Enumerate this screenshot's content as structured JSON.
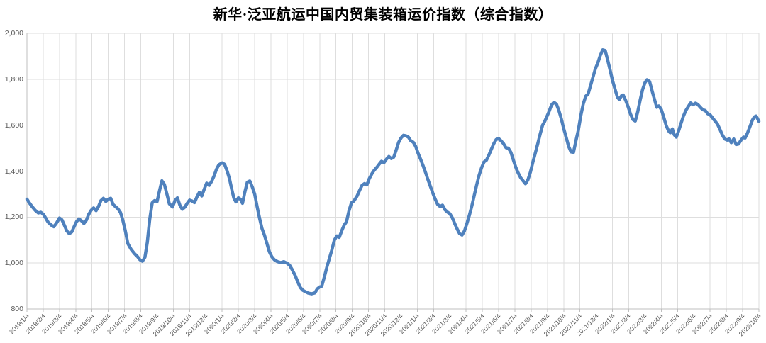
{
  "title": "新华·泛亚航运中国内贸集装箱运价指数（综合指数）",
  "chart_data": {
    "type": "line",
    "title": "新华·泛亚航运中国内贸集装箱运价指数（综合指数）",
    "xlabel": "",
    "ylabel": "",
    "ylim": [
      800,
      2000
    ],
    "y_ticks": [
      800,
      1000,
      1200,
      1400,
      1600,
      1800,
      2000
    ],
    "grid": true,
    "legend_position": "none",
    "x_unit": "months_since_2019/1/4",
    "x_labels": [
      "2019/1/4",
      "2019/2/4",
      "2019/3/4",
      "2019/4/4",
      "2019/5/4",
      "2019/6/4",
      "2019/7/4",
      "2019/8/4",
      "2019/9/4",
      "2019/10/4",
      "2019/11/4",
      "2019/12/4",
      "2020/1/4",
      "2020/2/4",
      "2020/3/4",
      "2020/4/4",
      "2020/5/4",
      "2020/6/4",
      "2020/7/4",
      "2020/8/4",
      "2020/9/4",
      "2020/10/4",
      "2020/11/4",
      "2020/12/4",
      "2021/1/4",
      "2021/2/4",
      "2021/3/4",
      "2021/4/4",
      "2021/5/4",
      "2021/6/4",
      "2021/7/4",
      "2021/8/4",
      "2021/9/4",
      "2021/10/4",
      "2021/11/4",
      "2021/12/4",
      "2022/1/4",
      "2022/2/4",
      "2022/3/4",
      "2022/4/4",
      "2022/5/4",
      "2022/6/4",
      "2022/7/4",
      "2022/8/4",
      "2022/9/4",
      "2022/10/4"
    ],
    "series": [
      {
        "name": "综合指数",
        "color": "#4F81BD",
        "points": [
          [
            0.0,
            1278
          ],
          [
            0.15,
            1262
          ],
          [
            0.3,
            1247
          ],
          [
            0.5,
            1230
          ],
          [
            0.7,
            1218
          ],
          [
            0.85,
            1221
          ],
          [
            1.0,
            1213
          ],
          [
            1.15,
            1196
          ],
          [
            1.3,
            1178
          ],
          [
            1.5,
            1165
          ],
          [
            1.65,
            1158
          ],
          [
            1.8,
            1172
          ],
          [
            2.0,
            1196
          ],
          [
            2.15,
            1188
          ],
          [
            2.3,
            1165
          ],
          [
            2.45,
            1140
          ],
          [
            2.6,
            1128
          ],
          [
            2.75,
            1135
          ],
          [
            2.9,
            1158
          ],
          [
            3.05,
            1180
          ],
          [
            3.2,
            1192
          ],
          [
            3.35,
            1184
          ],
          [
            3.5,
            1172
          ],
          [
            3.65,
            1186
          ],
          [
            3.8,
            1212
          ],
          [
            3.95,
            1230
          ],
          [
            4.1,
            1240
          ],
          [
            4.25,
            1228
          ],
          [
            4.4,
            1246
          ],
          [
            4.55,
            1272
          ],
          [
            4.7,
            1282
          ],
          [
            4.85,
            1268
          ],
          [
            5.0,
            1278
          ],
          [
            5.15,
            1282
          ],
          [
            5.3,
            1255
          ],
          [
            5.45,
            1245
          ],
          [
            5.6,
            1236
          ],
          [
            5.75,
            1220
          ],
          [
            5.9,
            1185
          ],
          [
            6.05,
            1140
          ],
          [
            6.2,
            1085
          ],
          [
            6.4,
            1060
          ],
          [
            6.6,
            1042
          ],
          [
            6.8,
            1028
          ],
          [
            6.95,
            1014
          ],
          [
            7.1,
            1008
          ],
          [
            7.25,
            1025
          ],
          [
            7.4,
            1090
          ],
          [
            7.55,
            1190
          ],
          [
            7.7,
            1262
          ],
          [
            7.85,
            1272
          ],
          [
            8.0,
            1268
          ],
          [
            8.15,
            1315
          ],
          [
            8.3,
            1358
          ],
          [
            8.45,
            1342
          ],
          [
            8.6,
            1302
          ],
          [
            8.75,
            1258
          ],
          [
            8.95,
            1244
          ],
          [
            9.1,
            1272
          ],
          [
            9.25,
            1284
          ],
          [
            9.4,
            1252
          ],
          [
            9.55,
            1234
          ],
          [
            9.7,
            1243
          ],
          [
            9.85,
            1260
          ],
          [
            10.0,
            1274
          ],
          [
            10.15,
            1270
          ],
          [
            10.3,
            1263
          ],
          [
            10.45,
            1288
          ],
          [
            10.6,
            1308
          ],
          [
            10.75,
            1292
          ],
          [
            10.9,
            1322
          ],
          [
            11.05,
            1348
          ],
          [
            11.2,
            1338
          ],
          [
            11.35,
            1355
          ],
          [
            11.5,
            1378
          ],
          [
            11.65,
            1408
          ],
          [
            11.8,
            1428
          ],
          [
            12.0,
            1436
          ],
          [
            12.15,
            1430
          ],
          [
            12.3,
            1402
          ],
          [
            12.45,
            1368
          ],
          [
            12.6,
            1318
          ],
          [
            12.72,
            1283
          ],
          [
            12.85,
            1266
          ],
          [
            13.0,
            1284
          ],
          [
            13.12,
            1278
          ],
          [
            13.25,
            1260
          ],
          [
            13.4,
            1310
          ],
          [
            13.55,
            1352
          ],
          [
            13.7,
            1357
          ],
          [
            13.85,
            1332
          ],
          [
            14.0,
            1300
          ],
          [
            14.15,
            1246
          ],
          [
            14.3,
            1196
          ],
          [
            14.45,
            1150
          ],
          [
            14.6,
            1122
          ],
          [
            14.75,
            1086
          ],
          [
            14.9,
            1050
          ],
          [
            15.05,
            1028
          ],
          [
            15.2,
            1015
          ],
          [
            15.4,
            1006
          ],
          [
            15.6,
            1002
          ],
          [
            15.8,
            1006
          ],
          [
            16.0,
            999
          ],
          [
            16.15,
            990
          ],
          [
            16.3,
            972
          ],
          [
            16.5,
            944
          ],
          [
            16.65,
            918
          ],
          [
            16.8,
            894
          ],
          [
            16.95,
            882
          ],
          [
            17.1,
            876
          ],
          [
            17.3,
            869
          ],
          [
            17.5,
            866
          ],
          [
            17.7,
            870
          ],
          [
            17.85,
            888
          ],
          [
            18.0,
            896
          ],
          [
            18.12,
            899
          ],
          [
            18.28,
            938
          ],
          [
            18.45,
            985
          ],
          [
            18.6,
            1022
          ],
          [
            18.75,
            1058
          ],
          [
            18.9,
            1100
          ],
          [
            19.05,
            1118
          ],
          [
            19.2,
            1112
          ],
          [
            19.35,
            1140
          ],
          [
            19.5,
            1165
          ],
          [
            19.65,
            1180
          ],
          [
            19.8,
            1228
          ],
          [
            19.95,
            1262
          ],
          [
            20.1,
            1270
          ],
          [
            20.3,
            1292
          ],
          [
            20.45,
            1316
          ],
          [
            20.6,
            1338
          ],
          [
            20.75,
            1346
          ],
          [
            20.9,
            1340
          ],
          [
            21.05,
            1368
          ],
          [
            21.2,
            1388
          ],
          [
            21.35,
            1404
          ],
          [
            21.5,
            1416
          ],
          [
            21.65,
            1430
          ],
          [
            21.8,
            1443
          ],
          [
            21.95,
            1437
          ],
          [
            22.1,
            1452
          ],
          [
            22.25,
            1464
          ],
          [
            22.4,
            1455
          ],
          [
            22.55,
            1461
          ],
          [
            22.7,
            1492
          ],
          [
            22.85,
            1525
          ],
          [
            23.0,
            1545
          ],
          [
            23.15,
            1556
          ],
          [
            23.3,
            1554
          ],
          [
            23.45,
            1548
          ],
          [
            23.6,
            1532
          ],
          [
            23.75,
            1526
          ],
          [
            23.9,
            1508
          ],
          [
            24.05,
            1478
          ],
          [
            24.2,
            1452
          ],
          [
            24.35,
            1425
          ],
          [
            24.5,
            1395
          ],
          [
            24.65,
            1364
          ],
          [
            24.8,
            1335
          ],
          [
            24.95,
            1305
          ],
          [
            25.1,
            1278
          ],
          [
            25.25,
            1255
          ],
          [
            25.4,
            1246
          ],
          [
            25.55,
            1252
          ],
          [
            25.7,
            1232
          ],
          [
            25.85,
            1222
          ],
          [
            26.0,
            1215
          ],
          [
            26.15,
            1197
          ],
          [
            26.3,
            1172
          ],
          [
            26.45,
            1148
          ],
          [
            26.6,
            1128
          ],
          [
            26.75,
            1122
          ],
          [
            26.9,
            1140
          ],
          [
            27.05,
            1172
          ],
          [
            27.2,
            1208
          ],
          [
            27.35,
            1248
          ],
          [
            27.5,
            1295
          ],
          [
            27.65,
            1340
          ],
          [
            27.8,
            1382
          ],
          [
            27.95,
            1415
          ],
          [
            28.1,
            1440
          ],
          [
            28.25,
            1448
          ],
          [
            28.4,
            1470
          ],
          [
            28.55,
            1495
          ],
          [
            28.7,
            1520
          ],
          [
            28.85,
            1538
          ],
          [
            29.0,
            1542
          ],
          [
            29.15,
            1532
          ],
          [
            29.3,
            1520
          ],
          [
            29.45,
            1502
          ],
          [
            29.6,
            1500
          ],
          [
            29.75,
            1482
          ],
          [
            29.9,
            1450
          ],
          [
            30.05,
            1418
          ],
          [
            30.2,
            1392
          ],
          [
            30.35,
            1372
          ],
          [
            30.5,
            1358
          ],
          [
            30.65,
            1345
          ],
          [
            30.8,
            1362
          ],
          [
            30.95,
            1395
          ],
          [
            31.1,
            1438
          ],
          [
            31.25,
            1478
          ],
          [
            31.4,
            1518
          ],
          [
            31.55,
            1560
          ],
          [
            31.7,
            1600
          ],
          [
            31.8,
            1612
          ],
          [
            31.95,
            1635
          ],
          [
            32.1,
            1660
          ],
          [
            32.25,
            1688
          ],
          [
            32.4,
            1700
          ],
          [
            32.55,
            1692
          ],
          [
            32.7,
            1665
          ],
          [
            32.85,
            1628
          ],
          [
            33.0,
            1585
          ],
          [
            33.15,
            1548
          ],
          [
            33.3,
            1508
          ],
          [
            33.45,
            1484
          ],
          [
            33.6,
            1482
          ],
          [
            33.75,
            1532
          ],
          [
            33.9,
            1578
          ],
          [
            34.05,
            1642
          ],
          [
            34.2,
            1692
          ],
          [
            34.35,
            1726
          ],
          [
            34.5,
            1736
          ],
          [
            34.65,
            1772
          ],
          [
            34.8,
            1810
          ],
          [
            34.95,
            1846
          ],
          [
            35.1,
            1872
          ],
          [
            35.25,
            1904
          ],
          [
            35.4,
            1928
          ],
          [
            35.55,
            1925
          ],
          [
            35.7,
            1885
          ],
          [
            35.85,
            1840
          ],
          [
            36.0,
            1795
          ],
          [
            36.15,
            1758
          ],
          [
            36.3,
            1722
          ],
          [
            36.42,
            1712
          ],
          [
            36.55,
            1728
          ],
          [
            36.65,
            1732
          ],
          [
            36.8,
            1710
          ],
          [
            36.95,
            1682
          ],
          [
            37.1,
            1650
          ],
          [
            37.25,
            1625
          ],
          [
            37.4,
            1618
          ],
          [
            37.55,
            1658
          ],
          [
            37.7,
            1710
          ],
          [
            37.85,
            1755
          ],
          [
            38.0,
            1786
          ],
          [
            38.12,
            1798
          ],
          [
            38.28,
            1790
          ],
          [
            38.45,
            1745
          ],
          [
            38.6,
            1708
          ],
          [
            38.72,
            1678
          ],
          [
            38.85,
            1684
          ],
          [
            39.0,
            1668
          ],
          [
            39.15,
            1635
          ],
          [
            39.3,
            1598
          ],
          [
            39.45,
            1575
          ],
          [
            39.55,
            1567
          ],
          [
            39.68,
            1584
          ],
          [
            39.8,
            1558
          ],
          [
            39.92,
            1548
          ],
          [
            40.05,
            1572
          ],
          [
            40.2,
            1605
          ],
          [
            40.35,
            1638
          ],
          [
            40.5,
            1663
          ],
          [
            40.65,
            1680
          ],
          [
            40.8,
            1697
          ],
          [
            40.95,
            1689
          ],
          [
            41.1,
            1696
          ],
          [
            41.25,
            1690
          ],
          [
            41.4,
            1678
          ],
          [
            41.55,
            1667
          ],
          [
            41.7,
            1664
          ],
          [
            41.85,
            1650
          ],
          [
            42.0,
            1645
          ],
          [
            42.15,
            1632
          ],
          [
            42.3,
            1618
          ],
          [
            42.45,
            1605
          ],
          [
            42.6,
            1582
          ],
          [
            42.75,
            1558
          ],
          [
            42.9,
            1540
          ],
          [
            43.05,
            1535
          ],
          [
            43.15,
            1541
          ],
          [
            43.3,
            1524
          ],
          [
            43.45,
            1540
          ],
          [
            43.6,
            1516
          ],
          [
            43.75,
            1518
          ],
          [
            43.9,
            1535
          ],
          [
            44.05,
            1548
          ],
          [
            44.15,
            1544
          ],
          [
            44.3,
            1566
          ],
          [
            44.45,
            1594
          ],
          [
            44.6,
            1622
          ],
          [
            44.72,
            1636
          ],
          [
            44.82,
            1640
          ],
          [
            44.92,
            1628
          ],
          [
            45.0,
            1617
          ]
        ]
      }
    ]
  },
  "colors": {
    "series_line": "#4F81BD",
    "gridline": "#dedede",
    "axis_line": "#bfbfbf",
    "tick_label": "#595959",
    "title_text": "#000000",
    "background": "#ffffff"
  }
}
